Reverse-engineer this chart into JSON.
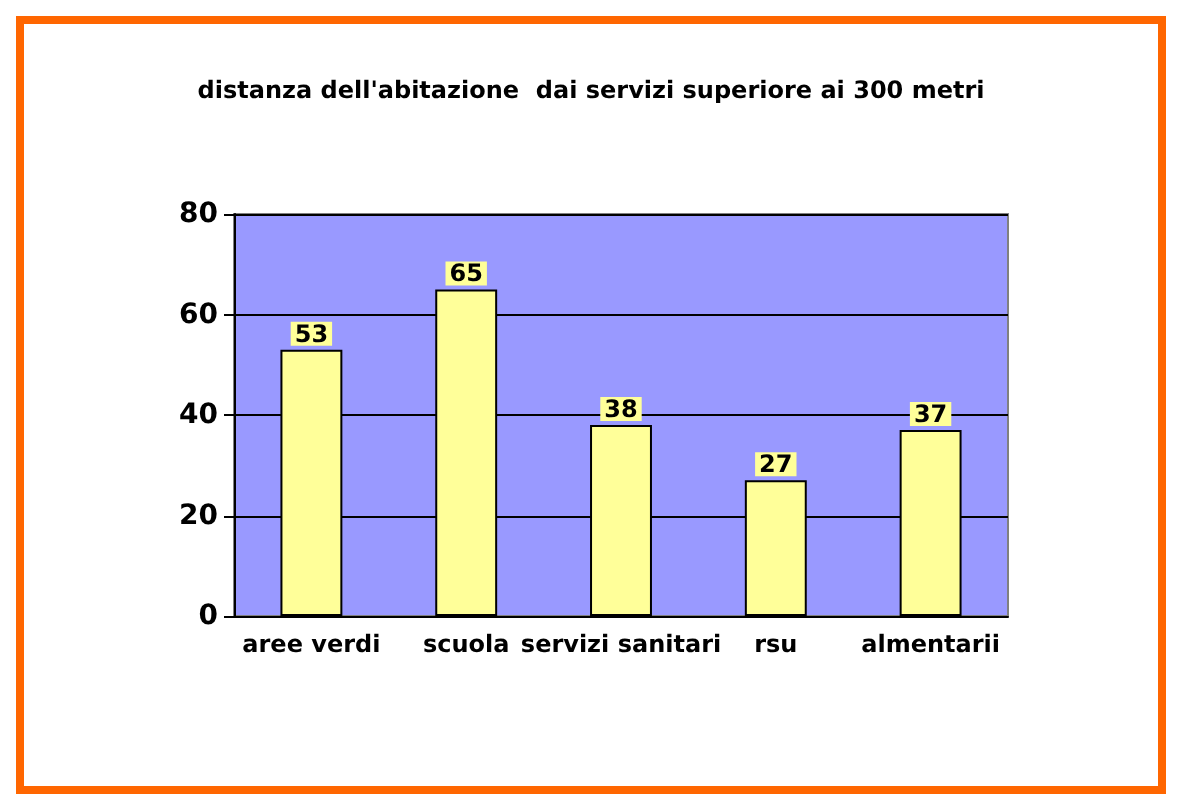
{
  "chart_data": {
    "type": "bar",
    "title": "distanza dell'abitazione  dai servizi superiore ai 300 metri",
    "categories": [
      "aree verdi",
      "scuola",
      "servizi sanitari",
      "rsu",
      "almentarii"
    ],
    "values": [
      53,
      65,
      38,
      27,
      37
    ],
    "color": "#ffff99",
    "ylim": [
      0,
      80
    ],
    "yticks": [
      0,
      20,
      40,
      60,
      80
    ],
    "grid": "y",
    "data_labels": true
  }
}
